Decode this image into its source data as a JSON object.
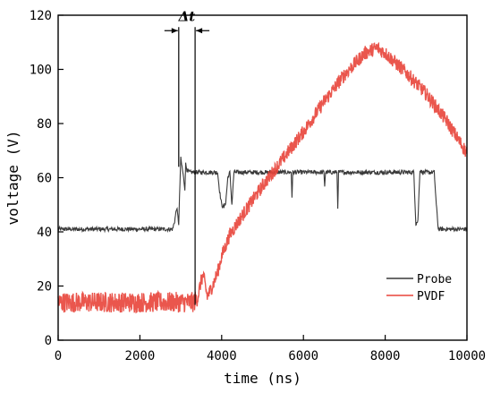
{
  "chart_data": {
    "type": "line",
    "xlabel": "time (ns)",
    "ylabel": "voltage (V)",
    "xlim": [
      0,
      10000
    ],
    "ylim": [
      0,
      120
    ],
    "x_ticks": [
      0,
      2000,
      4000,
      6000,
      8000,
      10000
    ],
    "y_ticks": [
      0,
      20,
      40,
      60,
      80,
      100,
      120
    ],
    "x_tick_labels": [
      "0",
      "2000",
      "4000",
      "6000",
      "8000",
      "10000"
    ],
    "y_tick_labels": [
      "0",
      "20",
      "40",
      "60",
      "80",
      "100",
      "120"
    ],
    "grid": false,
    "legend_position": "bottom-right",
    "annotation": {
      "text": "Δt",
      "x_start": 2950,
      "x_end": 3350,
      "y": 110
    },
    "series": [
      {
        "name": "Probe",
        "color": "#3a3a3a",
        "x": [
          0,
          2700,
          2800,
          2850,
          2900,
          2950,
          2990,
          3000,
          3050,
          3100,
          3120,
          3150,
          3200,
          3300,
          3500,
          3900,
          3950,
          4000,
          4050,
          4100,
          4150,
          4200,
          4250,
          4300,
          5000,
          5700,
          5720,
          5740,
          6000,
          6500,
          6520,
          6540,
          6820,
          6840,
          6860,
          7500,
          8700,
          8750,
          8800,
          8850,
          8900,
          9200,
          9250,
          9300,
          9350,
          10000
        ],
        "y": [
          41,
          41,
          41,
          44,
          49,
          43,
          63,
          67,
          62,
          56,
          65,
          63,
          62,
          62,
          62,
          62,
          55,
          50,
          49,
          51,
          60,
          62,
          50,
          62,
          62,
          62,
          53,
          62,
          62,
          62,
          57,
          62,
          62,
          49,
          62,
          62,
          62,
          43,
          44,
          63,
          62,
          62,
          50,
          41,
          41,
          41
        ]
      },
      {
        "name": "PVDF",
        "color": "#e8443a",
        "x": [
          0,
          3000,
          3300,
          3400,
          3500,
          3550,
          3650,
          3800,
          3900,
          4000,
          4200,
          4500,
          5000,
          5500,
          6000,
          6500,
          7000,
          7500,
          7800,
          8000,
          8500,
          9000,
          9500,
          10000
        ],
        "y": [
          14,
          14,
          14,
          15,
          22,
          24,
          16,
          21,
          25,
          31,
          39,
          46,
          57,
          67,
          77,
          88,
          98,
          106,
          108,
          106,
          99,
          91,
          81,
          69
        ]
      }
    ]
  }
}
